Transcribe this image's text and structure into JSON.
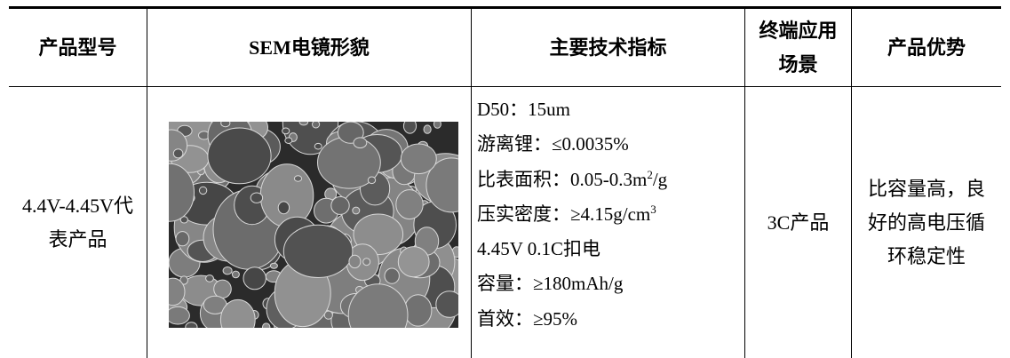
{
  "table": {
    "header": [
      "产品型号",
      "SEM电镜形貌",
      "主要技术指标",
      "终端应用场景",
      "产品优势"
    ],
    "rows": [
      [
        "4.4V-4.45V代表产品",
        null,
        [
          "D50：15um",
          "游离锂：≤0.0035%",
          {
            "text": "比表面积：0.05-0.3m",
            "sup": "2",
            "tail": "/g"
          },
          {
            "text": "压实密度：≥4.15g/cm",
            "sup": "3"
          },
          "4.45V 0.1C扣电",
          "容量：≥180mAh/g",
          "首效：≥95%"
        ],
        "3C产品",
        "比容量高，良好的高电压循环稳定性"
      ]
    ]
  }
}
